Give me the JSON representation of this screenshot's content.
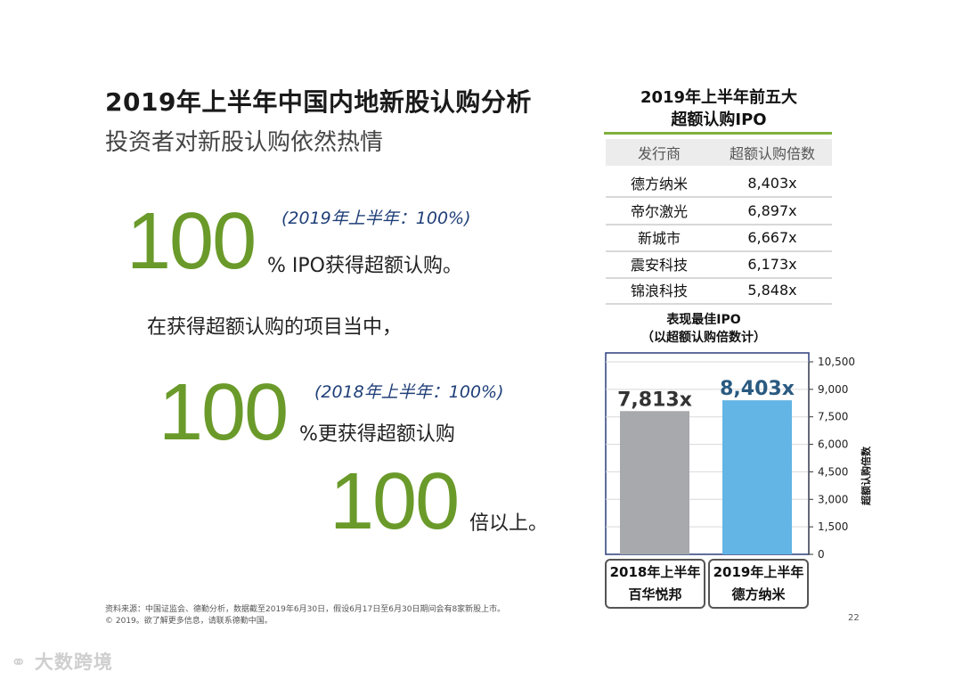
{
  "title": "2019年上半年中国内地新股认购分析",
  "subtitle": "投资者对新股认购依然热情",
  "stats": [
    {
      "big": "100",
      "note": "(2019年上半年：100%)",
      "desc": "% IPO获得超额认购。"
    },
    {
      "lead": "在获得超额认购的项目当中，"
    },
    {
      "big": "100",
      "note": "(2018年上半年：100%)",
      "desc": "%更获得超额认购"
    },
    {
      "big": "100",
      "desc": "倍以上。"
    }
  ],
  "table": {
    "title_line1": "2019年上半年前五大",
    "title_line2": "超额认购IPO",
    "headers": [
      "发行商",
      "超额认购倍数"
    ],
    "rows": [
      [
        "德方纳米",
        "8,403x"
      ],
      [
        "帝尔激光",
        "6,897x"
      ],
      [
        "新城市",
        "6,667x"
      ],
      [
        "震安科技",
        "6,173x"
      ],
      [
        "锦浪科技",
        "5,848x"
      ]
    ]
  },
  "chart_title_line1": "表现最佳IPO",
  "chart_title_line2": "（以超额认购倍数计）",
  "chart_data": {
    "type": "bar",
    "categories": [
      "2018年上半年 百华悦邦",
      "2019年上半年 德方纳米"
    ],
    "category_lines": [
      [
        "2018年上半年",
        "百华悦邦"
      ],
      [
        "2019年上半年",
        "德方纳米"
      ]
    ],
    "values": [
      7813,
      8403
    ],
    "value_labels": [
      "7,813x",
      "8,403x"
    ],
    "bar_colors": [
      "#a7a9ac",
      "#62b5e5"
    ],
    "label_colors": [
      "#333333",
      "#2a5a80"
    ],
    "ylabel": "超额认购倍数",
    "ylim": [
      0,
      10500
    ],
    "yticks": [
      0,
      1500,
      3000,
      4500,
      6000,
      7500,
      9000,
      10500
    ],
    "ytick_labels": [
      "0",
      "1,500",
      "3,000",
      "4,500",
      "6,000",
      "7,500",
      "9,000",
      "10,500"
    ],
    "grid": true
  },
  "footer_line1": "资料来源：中国证监会、德勤分析，数据截至2019年6月30日，假设6月17日至6月30日期间会有8家新股上市。",
  "footer_line2": "© 2019。欲了解更多信息，请联系德勤中国。",
  "page_number": "22",
  "watermark": "大数跨境",
  "colors": {
    "accent_green": "#6a9a2a",
    "note_blue": "#1f3f78",
    "rule_green": "#7fb03d"
  }
}
